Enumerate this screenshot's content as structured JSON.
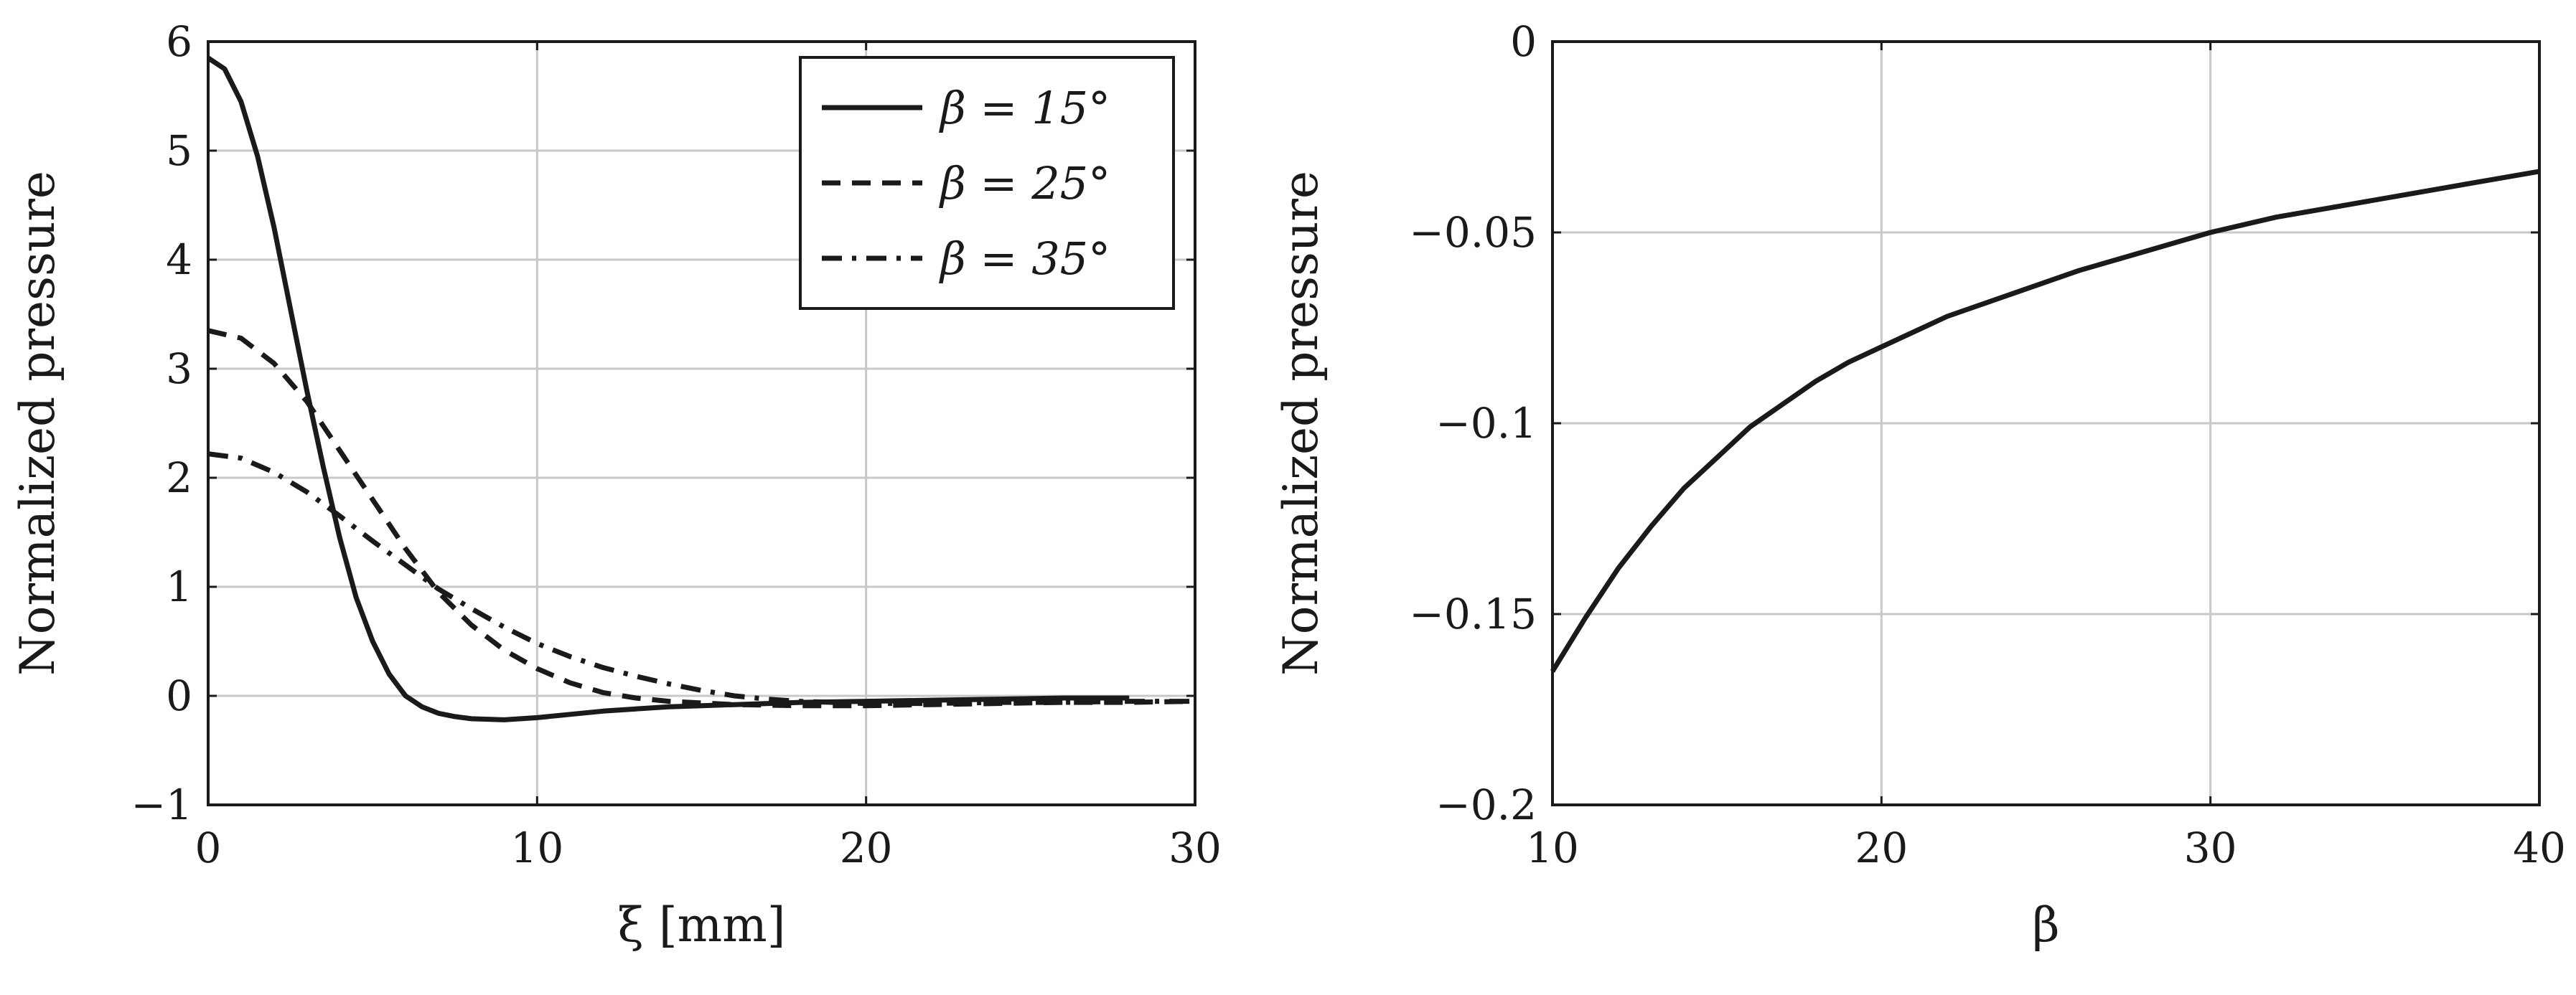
{
  "chart_data": [
    {
      "type": "line",
      "xlabel": "ξ [mm]",
      "ylabel": "Normalized pressure",
      "xlim": [
        0,
        30
      ],
      "ylim": [
        -1,
        6
      ],
      "xticks": [
        0,
        10,
        20,
        30
      ],
      "yticks": [
        -1,
        0,
        1,
        2,
        3,
        4,
        5,
        6
      ],
      "xtick_labels": [
        "0",
        "10",
        "20",
        "30"
      ],
      "ytick_labels": [
        "−1",
        "0",
        "1",
        "2",
        "3",
        "4",
        "5",
        "6"
      ],
      "grid": true,
      "legend_position": "top-right",
      "series": [
        {
          "name": "β = 15°",
          "style": "solid",
          "x": [
            0,
            0.5,
            1,
            1.5,
            2,
            2.5,
            3,
            3.5,
            4,
            4.5,
            5,
            5.5,
            6,
            6.5,
            7,
            7.5,
            8,
            9,
            10,
            11,
            12,
            13,
            14,
            15,
            16,
            18,
            20,
            22,
            24,
            26,
            28
          ],
          "y": [
            5.85,
            5.75,
            5.45,
            4.95,
            4.3,
            3.55,
            2.8,
            2.1,
            1.45,
            0.9,
            0.5,
            0.2,
            0.0,
            -0.1,
            -0.16,
            -0.19,
            -0.21,
            -0.22,
            -0.2,
            -0.17,
            -0.14,
            -0.12,
            -0.1,
            -0.09,
            -0.08,
            -0.06,
            -0.05,
            -0.04,
            -0.03,
            -0.02,
            -0.02
          ]
        },
        {
          "name": "β = 25°",
          "style": "dashed",
          "x": [
            0,
            1,
            2,
            3,
            4,
            5,
            6,
            7,
            8,
            9,
            10,
            11,
            12,
            13,
            14,
            16,
            18,
            20,
            22,
            24,
            26,
            28,
            30
          ],
          "y": [
            3.35,
            3.28,
            3.05,
            2.7,
            2.25,
            1.8,
            1.35,
            0.95,
            0.65,
            0.42,
            0.25,
            0.12,
            0.03,
            -0.02,
            -0.05,
            -0.08,
            -0.09,
            -0.09,
            -0.08,
            -0.07,
            -0.06,
            -0.06,
            -0.05
          ]
        },
        {
          "name": "β = 35°",
          "style": "dash-dot",
          "x": [
            0,
            1,
            2,
            3,
            4,
            5,
            6,
            7,
            8,
            9,
            10,
            11,
            12,
            13,
            14,
            15,
            16,
            17,
            18,
            20,
            22,
            24,
            26,
            28,
            30
          ],
          "y": [
            2.22,
            2.18,
            2.05,
            1.87,
            1.65,
            1.42,
            1.2,
            0.98,
            0.8,
            0.63,
            0.48,
            0.36,
            0.26,
            0.18,
            0.11,
            0.05,
            0.0,
            -0.03,
            -0.05,
            -0.07,
            -0.07,
            -0.06,
            -0.06,
            -0.05,
            -0.05
          ]
        }
      ]
    },
    {
      "type": "line",
      "xlabel": "β",
      "ylabel": "Normalized pressure",
      "xlim": [
        10,
        40
      ],
      "ylim": [
        -0.2,
        0
      ],
      "xticks": [
        10,
        20,
        30,
        40
      ],
      "yticks": [
        -0.2,
        -0.15,
        -0.1,
        -0.05,
        0
      ],
      "xtick_labels": [
        "10",
        "20",
        "30",
        "40"
      ],
      "ytick_labels": [
        "−0.2",
        "−0.15",
        "−0.1",
        "−0.05",
        "0"
      ],
      "grid": true,
      "series": [
        {
          "style": "solid",
          "x": [
            10,
            11,
            12,
            13,
            14,
            15,
            16,
            17,
            18,
            19,
            20,
            22,
            24,
            26,
            28,
            30,
            32,
            34,
            36,
            38,
            40
          ],
          "y": [
            -0.165,
            -0.151,
            -0.138,
            -0.127,
            -0.117,
            -0.109,
            -0.101,
            -0.095,
            -0.089,
            -0.084,
            -0.08,
            -0.072,
            -0.066,
            -0.06,
            -0.055,
            -0.05,
            -0.046,
            -0.043,
            -0.04,
            -0.037,
            -0.034
          ]
        }
      ]
    }
  ]
}
